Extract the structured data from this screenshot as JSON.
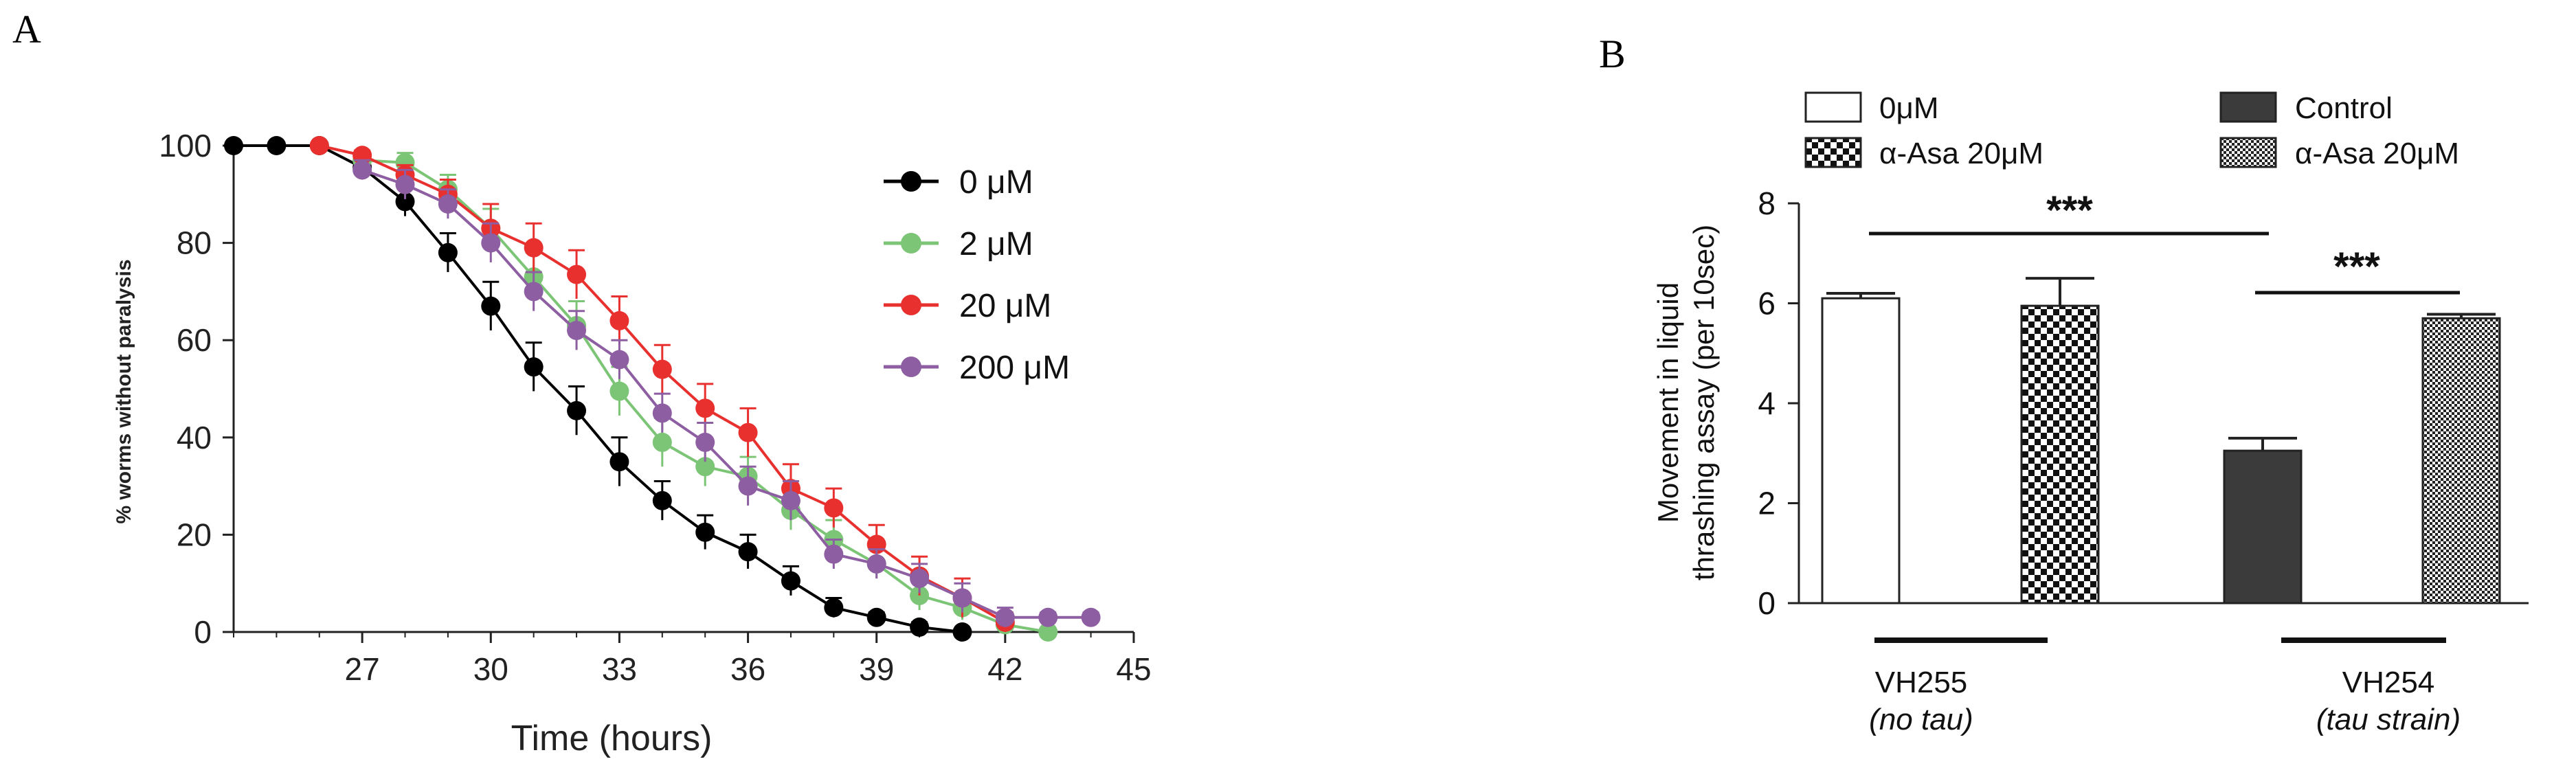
{
  "chart_data": [
    {
      "panel": "A",
      "type": "line",
      "title": "",
      "xlabel": "Time (hours)",
      "ylabel": "% worms without paralysis",
      "xlim": [
        24,
        45
      ],
      "ylim": [
        0,
        100
      ],
      "xticks": [
        27,
        30,
        33,
        36,
        39,
        42,
        45
      ],
      "yticks": [
        0,
        20,
        40,
        60,
        80,
        100
      ],
      "legend": "right",
      "series": [
        {
          "name": "0 μM",
          "color": "#000000",
          "x": [
            24,
            25,
            26,
            27,
            28,
            29,
            30,
            31,
            32,
            33,
            34,
            35,
            36,
            37,
            38,
            39,
            40,
            41,
            42
          ],
          "y": [
            100,
            100,
            100,
            95.5,
            88.5,
            78,
            67,
            54.5,
            45.5,
            35,
            27,
            20.5,
            16.5,
            10.5,
            5,
            3,
            1,
            0,
            null
          ],
          "err": [
            0,
            0,
            0,
            1.5,
            3,
            4,
            5,
            5,
            5,
            5,
            4,
            3.5,
            3.5,
            3,
            2,
            1,
            1,
            0,
            null
          ]
        },
        {
          "name": "2 μM",
          "color": "#7cc576",
          "x": [
            27,
            28,
            29,
            30,
            31,
            32,
            33,
            34,
            35,
            36,
            37,
            38,
            39,
            40,
            41,
            42,
            43,
            44
          ],
          "y": [
            97,
            96.5,
            91,
            83,
            73,
            63,
            49.5,
            39,
            34,
            32,
            25,
            19,
            14,
            7.5,
            5,
            1.5,
            0,
            null
          ],
          "err": [
            1.5,
            2,
            3,
            4,
            5,
            5,
            5,
            5,
            4,
            4,
            4,
            4,
            3,
            3,
            2.5,
            1.5,
            0,
            null
          ]
        },
        {
          "name": "20 μM",
          "color": "#e8302f",
          "x": [
            26,
            27,
            28,
            29,
            30,
            31,
            32,
            33,
            34,
            35,
            36,
            37,
            38,
            39,
            40,
            41,
            42,
            43
          ],
          "y": [
            100,
            98,
            94,
            90,
            83,
            79,
            73.5,
            64,
            54,
            46,
            41,
            29.5,
            25.5,
            18,
            11.5,
            7,
            2,
            null
          ],
          "err": [
            0,
            1,
            2,
            3,
            5,
            5,
            5,
            5,
            5,
            5,
            5,
            5,
            4,
            4,
            4,
            4,
            2,
            null
          ]
        },
        {
          "name": "200 μM",
          "color": "#8e5ea2",
          "x": [
            27,
            28,
            29,
            30,
            31,
            32,
            33,
            34,
            35,
            36,
            37,
            38,
            39,
            40,
            41,
            42,
            43,
            44
          ],
          "y": [
            95,
            92,
            88,
            80,
            70,
            62,
            56,
            45,
            39,
            30,
            27,
            16,
            14,
            11,
            7,
            3,
            3,
            3
          ],
          "err": [
            2,
            3,
            3,
            4,
            4,
            4,
            4,
            4,
            4,
            4,
            4,
            3,
            3,
            3,
            3,
            2,
            1,
            1
          ]
        }
      ]
    },
    {
      "panel": "B",
      "type": "bar",
      "title": "",
      "ylabel_line1": "Movement in liquid",
      "ylabel_line2": "thrashing assay (per 10sec)",
      "ylim": [
        0,
        8
      ],
      "yticks": [
        0,
        2,
        4,
        6,
        8
      ],
      "categories": [
        "0μM",
        "α-Asa 20μM",
        "Control",
        "α-Asa 20μM"
      ],
      "values": [
        6.1,
        5.95,
        3.05,
        5.7
      ],
      "errors": [
        0.1,
        0.55,
        0.25,
        0.08
      ],
      "groups": [
        {
          "label": "VH255",
          "sublabel": "(no tau)"
        },
        {
          "label": "VH254",
          "sublabel": "(tau strain)"
        }
      ],
      "significance": [
        {
          "text": "***"
        },
        {
          "text": "***"
        }
      ],
      "legend": "top"
    }
  ],
  "panel_labels": {
    "a": "A",
    "b": "B"
  }
}
